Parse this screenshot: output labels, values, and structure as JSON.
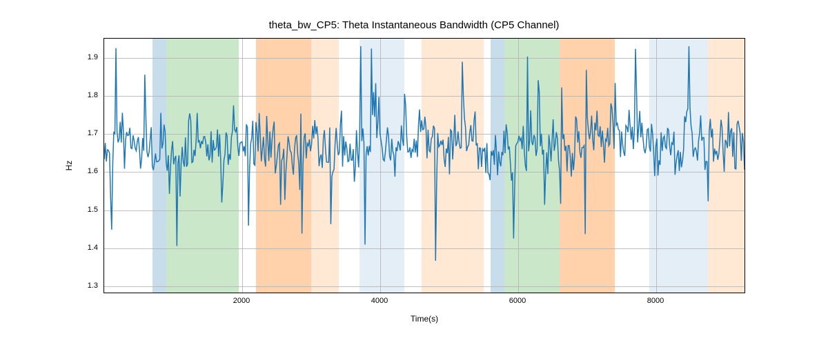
{
  "chart": {
    "type": "line",
    "title": "theta_bw_CP5: Theta Instantaneous Bandwidth (CP5 Channel)",
    "title_fontsize": 15,
    "xlabel": "Time(s)",
    "ylabel": "Hz",
    "label_fontsize": 12,
    "tick_fontsize": 11,
    "xlim": [
      0,
      9300
    ],
    "ylim": [
      1.28,
      1.95
    ],
    "xticks": [
      2000,
      4000,
      6000,
      8000
    ],
    "yticks": [
      1.3,
      1.4,
      1.5,
      1.6,
      1.7,
      1.8,
      1.9
    ],
    "background_color": "#ffffff",
    "grid_color": "#b0b0b0",
    "border_color": "#000000",
    "line_color": "#1f77b4",
    "line_width": 1.5,
    "regions": [
      {
        "start": 700,
        "end": 900,
        "color": "#1f77b4",
        "alpha": 0.25
      },
      {
        "start": 900,
        "end": 1950,
        "color": "#2ca02c",
        "alpha": 0.25
      },
      {
        "start": 2200,
        "end": 3000,
        "color": "#ff7f0e",
        "alpha": 0.35
      },
      {
        "start": 3000,
        "end": 3400,
        "color": "#ff7f0e",
        "alpha": 0.18
      },
      {
        "start": 3700,
        "end": 4350,
        "color": "#1f77b4",
        "alpha": 0.12
      },
      {
        "start": 4600,
        "end": 5500,
        "color": "#ff7f0e",
        "alpha": 0.18
      },
      {
        "start": 5600,
        "end": 5800,
        "color": "#1f77b4",
        "alpha": 0.25
      },
      {
        "start": 5800,
        "end": 6600,
        "color": "#2ca02c",
        "alpha": 0.25
      },
      {
        "start": 6600,
        "end": 7400,
        "color": "#ff7f0e",
        "alpha": 0.35
      },
      {
        "start": 7900,
        "end": 8750,
        "color": "#1f77b4",
        "alpha": 0.12
      },
      {
        "start": 8750,
        "end": 9300,
        "color": "#ff7f0e",
        "alpha": 0.18
      }
    ],
    "signal_seed": 42,
    "signal_n_points": 600,
    "signal_mean": 1.67,
    "signal_std": 0.08,
    "signal_spike_prob": 0.06,
    "signal_spike_mag": 0.18
  }
}
